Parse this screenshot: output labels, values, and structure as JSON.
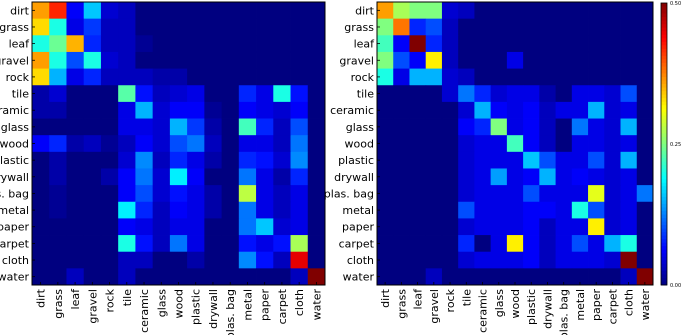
{
  "chart_data": [
    {
      "type": "heatmap",
      "title": "",
      "xlabel": "",
      "ylabel": "",
      "categories": [
        "dirt",
        "grass",
        "leaf",
        "gravel",
        "rock",
        "tile",
        "ceramic",
        "glass",
        "wood",
        "plastic",
        "drywall",
        "plas. bag",
        "metal",
        "paper",
        "carpet",
        "cloth",
        "water"
      ],
      "values": [
        [
          0.36,
          0.42,
          0.06,
          0.16,
          0.04,
          0.03,
          0.0,
          0.0,
          0.0,
          0.0,
          0.0,
          0.0,
          0.0,
          0.0,
          0.0,
          0.0,
          0.0
        ],
        [
          0.33,
          0.2,
          0.05,
          0.09,
          0.03,
          0.03,
          0.0,
          0.0,
          0.0,
          0.0,
          0.0,
          0.0,
          0.0,
          0.0,
          0.0,
          0.0,
          0.0
        ],
        [
          0.2,
          0.24,
          0.35,
          0.08,
          0.03,
          0.03,
          0.01,
          0.0,
          0.0,
          0.0,
          0.0,
          0.0,
          0.0,
          0.0,
          0.0,
          0.0,
          0.0
        ],
        [
          0.36,
          0.2,
          0.1,
          0.2,
          0.04,
          0.03,
          0.0,
          0.0,
          0.0,
          0.0,
          0.0,
          0.0,
          0.0,
          0.0,
          0.0,
          0.0,
          0.0
        ],
        [
          0.33,
          0.15,
          0.05,
          0.08,
          0.03,
          0.03,
          0.03,
          0.02,
          0.02,
          0.0,
          0.0,
          0.0,
          0.0,
          0.0,
          0.0,
          0.0,
          0.0
        ],
        [
          0.02,
          0.04,
          0.0,
          0.0,
          0.0,
          0.23,
          0.07,
          0.03,
          0.04,
          0.05,
          0.0,
          0.0,
          0.08,
          0.05,
          0.2,
          0.07,
          0.0
        ],
        [
          0.02,
          0.02,
          0.0,
          0.0,
          0.0,
          0.05,
          0.15,
          0.04,
          0.06,
          0.06,
          0.01,
          0.0,
          0.06,
          0.05,
          0.04,
          0.06,
          0.0
        ],
        [
          0.0,
          0.0,
          0.0,
          0.0,
          0.0,
          0.05,
          0.05,
          0.04,
          0.15,
          0.09,
          0.02,
          0.0,
          0.22,
          0.08,
          0.03,
          0.1,
          0.0
        ],
        [
          0.06,
          0.08,
          0.02,
          0.03,
          0.01,
          0.03,
          0.06,
          0.04,
          0.1,
          0.12,
          0.03,
          0.0,
          0.05,
          0.05,
          0.03,
          0.12,
          0.0
        ],
        [
          0.0,
          0.02,
          0.0,
          0.0,
          0.0,
          0.04,
          0.13,
          0.03,
          0.08,
          0.05,
          0.02,
          0.0,
          0.08,
          0.07,
          0.04,
          0.13,
          0.0
        ],
        [
          0.0,
          0.02,
          0.0,
          0.0,
          0.02,
          0.06,
          0.12,
          0.04,
          0.18,
          0.06,
          0.0,
          0.0,
          0.12,
          0.05,
          0.02,
          0.08,
          0.0
        ],
        [
          0.0,
          0.01,
          0.0,
          0.0,
          0.0,
          0.06,
          0.1,
          0.04,
          0.07,
          0.05,
          0.02,
          0.0,
          0.28,
          0.05,
          0.03,
          0.05,
          0.0
        ],
        [
          0.0,
          0.01,
          0.0,
          0.0,
          0.0,
          0.18,
          0.08,
          0.03,
          0.06,
          0.05,
          0.02,
          0.0,
          0.12,
          0.05,
          0.03,
          0.05,
          0.0
        ],
        [
          0.0,
          0.0,
          0.0,
          0.0,
          0.0,
          0.06,
          0.05,
          0.03,
          0.05,
          0.05,
          0.0,
          0.0,
          0.12,
          0.16,
          0.04,
          0.05,
          0.0
        ],
        [
          0.0,
          0.0,
          0.0,
          0.0,
          0.0,
          0.2,
          0.07,
          0.03,
          0.12,
          0.05,
          0.0,
          0.0,
          0.07,
          0.05,
          0.07,
          0.27,
          0.0
        ],
        [
          0.0,
          0.0,
          0.0,
          0.0,
          0.0,
          0.03,
          0.03,
          0.0,
          0.0,
          0.02,
          0.0,
          0.0,
          0.13,
          0.07,
          0.03,
          0.45,
          0.0
        ],
        [
          0.0,
          0.0,
          0.03,
          0.0,
          0.0,
          0.03,
          0.0,
          0.0,
          0.0,
          0.0,
          0.0,
          0.0,
          0.0,
          0.0,
          0.0,
          0.03,
          0.5
        ]
      ]
    },
    {
      "type": "heatmap",
      "title": "",
      "xlabel": "",
      "ylabel": "",
      "categories": [
        "dirt",
        "grass",
        "leaf",
        "gravel",
        "rock",
        "tile",
        "ceramic",
        "glass",
        "wood",
        "plastic",
        "drywall",
        "plas. bag",
        "metal",
        "paper",
        "carpet",
        "cloth",
        "water"
      ],
      "colorbar_ticks": [
        "0.00",
        "0.25",
        "0.50"
      ],
      "vmin": 0.0,
      "vmax": 0.5,
      "values": [
        [
          0.36,
          0.27,
          0.25,
          0.25,
          0.04,
          0.03,
          0.0,
          0.0,
          0.0,
          0.0,
          0.0,
          0.0,
          0.0,
          0.0,
          0.0,
          0.0,
          0.0
        ],
        [
          0.25,
          0.38,
          0.08,
          0.1,
          0.03,
          0.0,
          0.0,
          0.0,
          0.0,
          0.0,
          0.0,
          0.0,
          0.0,
          0.0,
          0.0,
          0.0,
          0.0
        ],
        [
          0.22,
          0.06,
          0.5,
          0.08,
          0.03,
          0.0,
          0.0,
          0.0,
          0.0,
          0.0,
          0.0,
          0.0,
          0.0,
          0.0,
          0.0,
          0.0,
          0.0
        ],
        [
          0.25,
          0.1,
          0.06,
          0.32,
          0.03,
          0.0,
          0.0,
          0.0,
          0.05,
          0.0,
          0.0,
          0.0,
          0.0,
          0.0,
          0.0,
          0.0,
          0.0
        ],
        [
          0.2,
          0.05,
          0.15,
          0.15,
          0.04,
          0.03,
          0.0,
          0.0,
          0.0,
          0.0,
          0.0,
          0.0,
          0.0,
          0.0,
          0.0,
          0.0,
          0.0
        ],
        [
          0.0,
          0.0,
          0.0,
          0.0,
          0.04,
          0.12,
          0.08,
          0.04,
          0.05,
          0.05,
          0.02,
          0.0,
          0.05,
          0.05,
          0.04,
          0.1,
          0.0
        ],
        [
          0.0,
          0.0,
          0.0,
          0.0,
          0.0,
          0.04,
          0.15,
          0.06,
          0.05,
          0.06,
          0.03,
          0.05,
          0.05,
          0.15,
          0.04,
          0.05,
          0.0
        ],
        [
          0.0,
          0.0,
          0.0,
          0.0,
          0.0,
          0.06,
          0.08,
          0.25,
          0.05,
          0.06,
          0.03,
          0.0,
          0.12,
          0.05,
          0.04,
          0.15,
          0.0
        ],
        [
          0.0,
          0.0,
          0.0,
          0.0,
          0.0,
          0.04,
          0.05,
          0.05,
          0.22,
          0.06,
          0.03,
          0.0,
          0.05,
          0.05,
          0.04,
          0.05,
          0.0
        ],
        [
          0.0,
          0.0,
          0.0,
          0.0,
          0.0,
          0.04,
          0.05,
          0.05,
          0.05,
          0.16,
          0.1,
          0.05,
          0.05,
          0.1,
          0.04,
          0.15,
          0.0
        ],
        [
          0.0,
          0.0,
          0.0,
          0.0,
          0.0,
          0.04,
          0.05,
          0.14,
          0.05,
          0.06,
          0.15,
          0.05,
          0.06,
          0.05,
          0.04,
          0.05,
          0.0
        ],
        [
          0.0,
          0.0,
          0.0,
          0.0,
          0.0,
          0.04,
          0.05,
          0.05,
          0.05,
          0.1,
          0.05,
          0.05,
          0.05,
          0.3,
          0.04,
          0.05,
          0.12
        ],
        [
          0.0,
          0.0,
          0.0,
          0.0,
          0.0,
          0.1,
          0.05,
          0.05,
          0.05,
          0.06,
          0.06,
          0.05,
          0.2,
          0.1,
          0.04,
          0.05,
          0.0
        ],
        [
          0.0,
          0.0,
          0.0,
          0.0,
          0.0,
          0.04,
          0.05,
          0.05,
          0.05,
          0.06,
          0.03,
          0.05,
          0.05,
          0.32,
          0.04,
          0.05,
          0.0
        ],
        [
          0.0,
          0.0,
          0.0,
          0.0,
          0.0,
          0.08,
          0.0,
          0.05,
          0.32,
          0.06,
          0.03,
          0.05,
          0.1,
          0.05,
          0.15,
          0.2,
          0.0
        ],
        [
          0.0,
          0.0,
          0.0,
          0.0,
          0.0,
          0.04,
          0.05,
          0.05,
          0.05,
          0.06,
          0.03,
          0.05,
          0.05,
          0.05,
          0.04,
          0.5,
          0.0
        ],
        [
          0.0,
          0.0,
          0.0,
          0.03,
          0.0,
          0.0,
          0.0,
          0.0,
          0.0,
          0.0,
          0.0,
          0.0,
          0.0,
          0.0,
          0.0,
          0.03,
          0.5
        ]
      ]
    }
  ]
}
